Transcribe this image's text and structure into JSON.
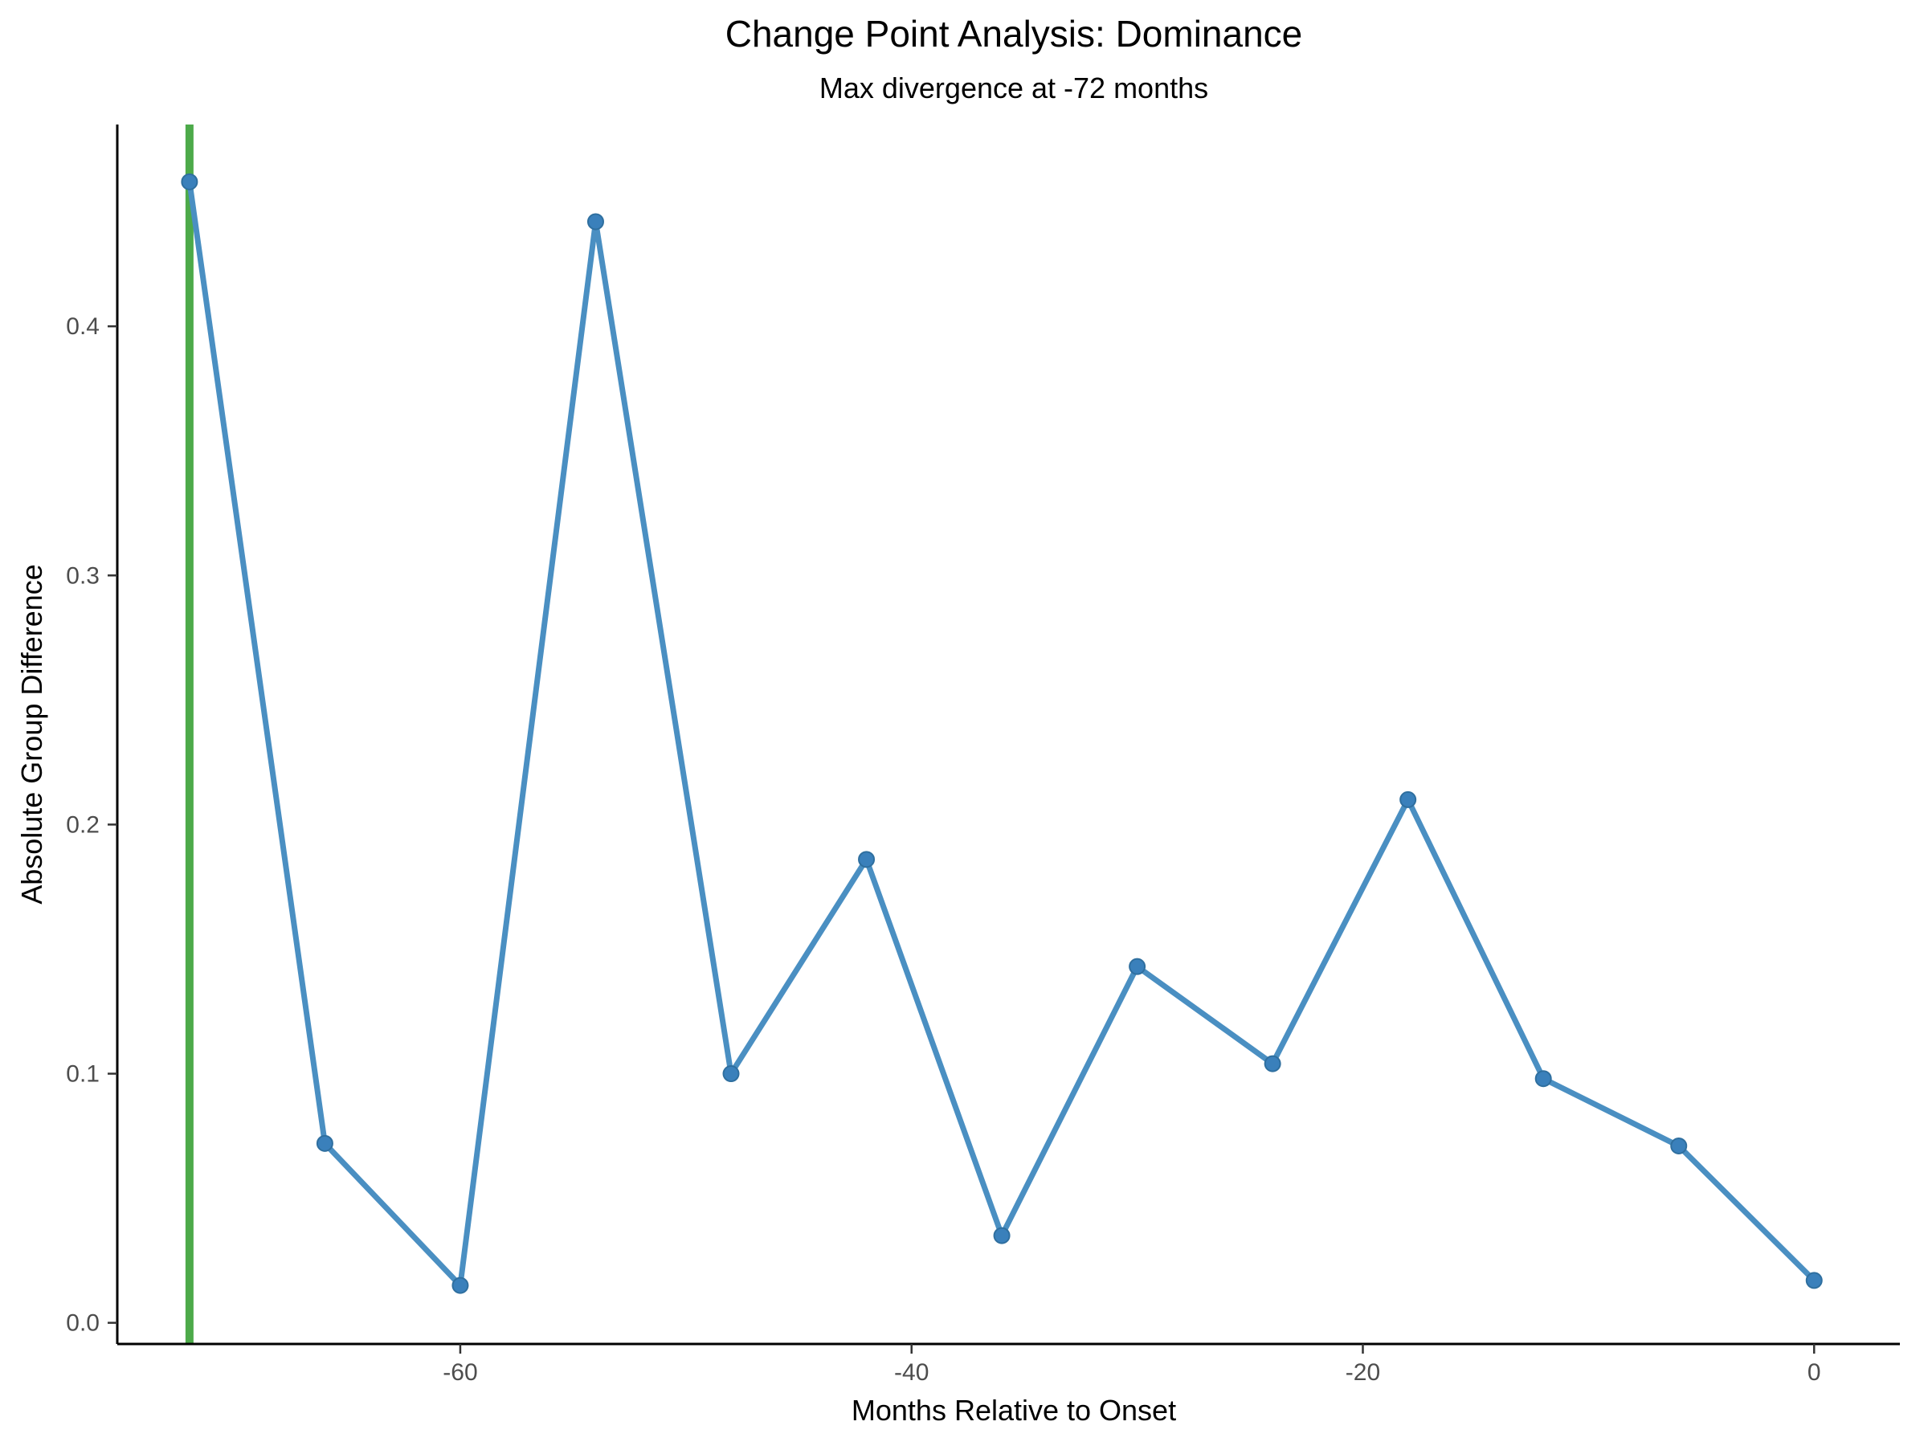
{
  "chart_data": {
    "type": "line",
    "title": "Change Point Analysis: Dominance",
    "subtitle": "Max divergence at -72 months",
    "xlabel": "Months Relative to Onset",
    "ylabel": "Absolute Group Difference",
    "xlim": [
      -75.2,
      3.8
    ],
    "ylim": [
      -0.0085,
      0.481
    ],
    "x_ticks": [
      -60,
      -40,
      -20,
      0
    ],
    "x_tick_labels": [
      "-60",
      "-40",
      "-20",
      "0"
    ],
    "y_ticks": [
      0.0,
      0.1,
      0.2,
      0.3,
      0.4
    ],
    "y_tick_labels": [
      "0.0",
      "0.1",
      "0.2",
      "0.3",
      "0.4"
    ],
    "grid": false,
    "legend": "none",
    "change_point_x": -72,
    "line_color": "#4a8fc2",
    "marker_color": "#3a80bb",
    "change_point_color": "#4daa4a",
    "x": [
      -72,
      -66,
      -60,
      -54,
      -48,
      -42,
      -36,
      -30,
      -24,
      -18,
      -12,
      -6,
      0
    ],
    "values": [
      0.458,
      0.072,
      0.015,
      0.442,
      0.1,
      0.186,
      0.035,
      0.143,
      0.104,
      0.21,
      0.098,
      0.071,
      0.017
    ]
  }
}
